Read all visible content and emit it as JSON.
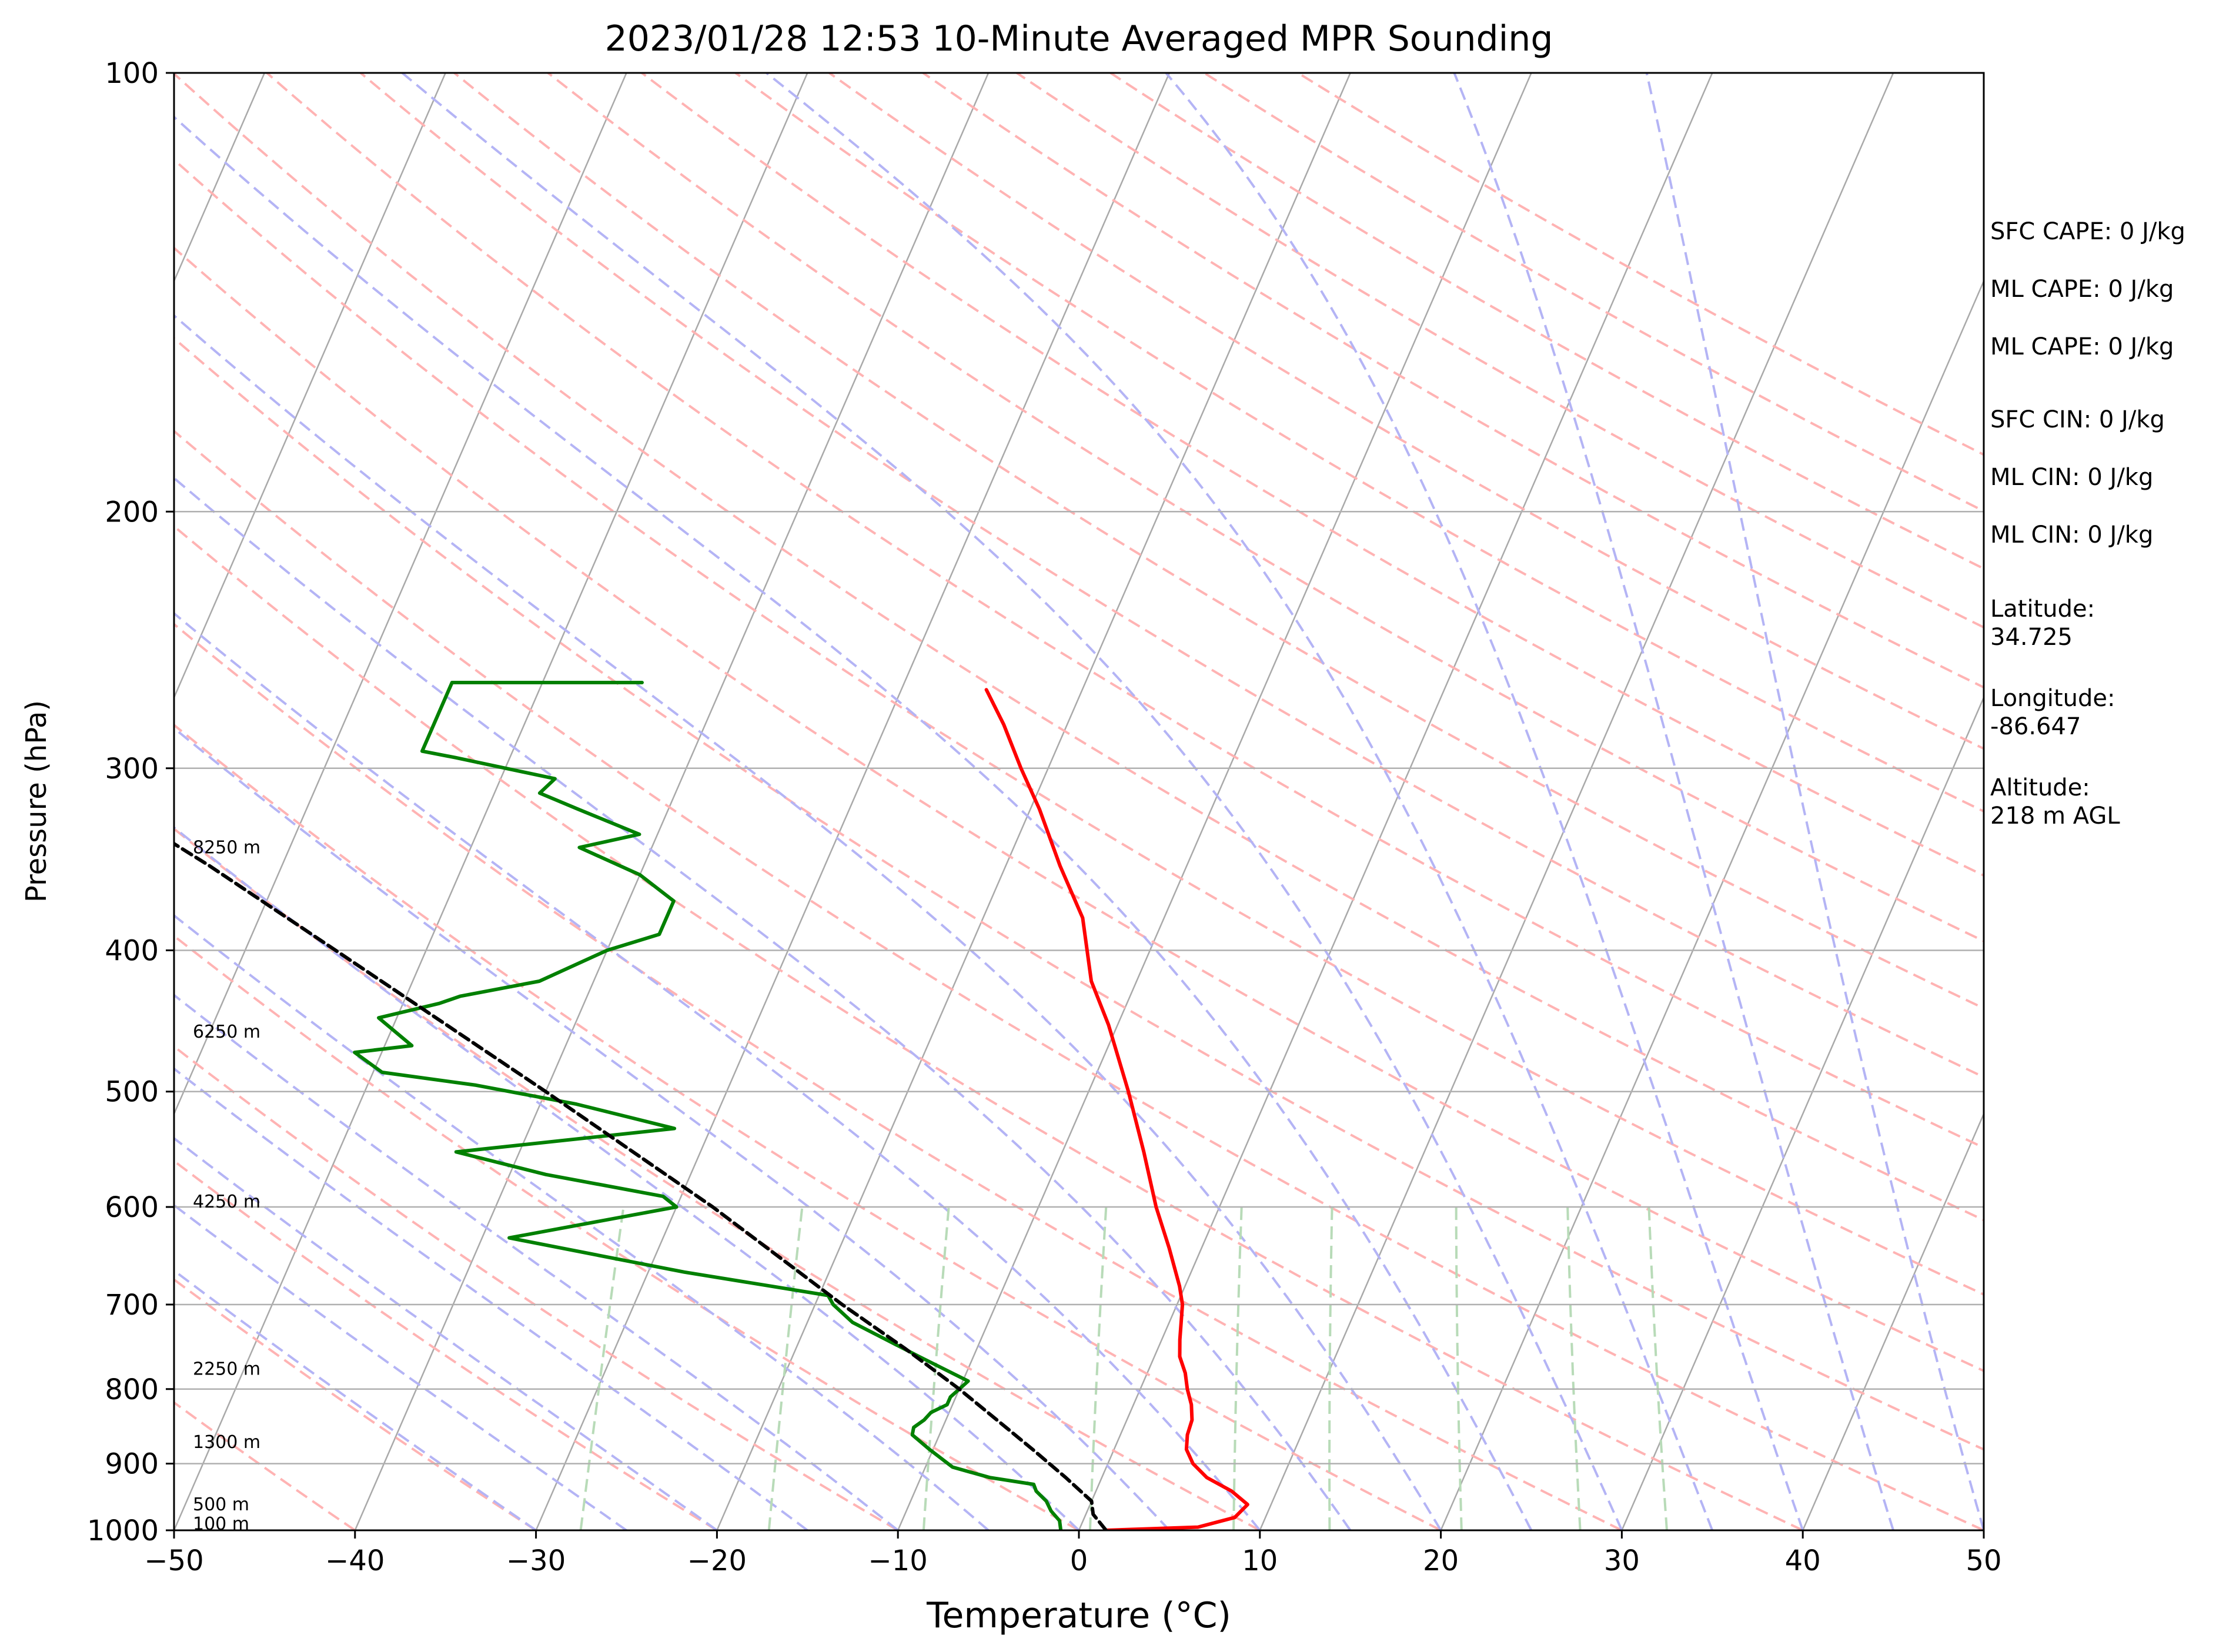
{
  "chart_data": {
    "type": "line",
    "title": "2023/01/28 12:53 10-Minute Averaged MPR Sounding",
    "xlabel": "Temperature (°C)",
    "ylabel": "Pressure (hPa)",
    "xlim": [
      -50,
      50
    ],
    "ylim": [
      1000,
      100
    ],
    "y_scale": "log",
    "grid": true,
    "x_ticks": [
      -50,
      -40,
      -30,
      -20,
      -10,
      0,
      10,
      20,
      30,
      40,
      50
    ],
    "x_tick_labels": [
      "−50",
      "−40",
      "−30",
      "−20",
      "−10",
      "0",
      "10",
      "20",
      "30",
      "40",
      "50"
    ],
    "y_ticks": [
      1000,
      900,
      800,
      700,
      600,
      500,
      400,
      300,
      200,
      100
    ],
    "y_tick_labels": [
      "1000",
      "900",
      "800",
      "700",
      "600",
      "500",
      "400",
      "300",
      "200",
      "100"
    ],
    "skew_note": "skew-T log-p diagram; x values are temperatures in °C",
    "series": [
      {
        "role": "temperature",
        "color": "#ff0000",
        "points": [
          [
            1000,
            1.5
          ],
          [
            995,
            6.5
          ],
          [
            980,
            8.3
          ],
          [
            960,
            8.7
          ],
          [
            940,
            7.5
          ],
          [
            920,
            5.8
          ],
          [
            900,
            4.7
          ],
          [
            880,
            4.0
          ],
          [
            860,
            3.7
          ],
          [
            840,
            3.6
          ],
          [
            820,
            3.2
          ],
          [
            800,
            2.6
          ],
          [
            780,
            2.1
          ],
          [
            760,
            1.4
          ],
          [
            740,
            1.0
          ],
          [
            700,
            0.3
          ],
          [
            680,
            -0.3
          ],
          [
            640,
            -1.8
          ],
          [
            600,
            -3.5
          ],
          [
            550,
            -5.5
          ],
          [
            500,
            -7.8
          ],
          [
            450,
            -10.5
          ],
          [
            420,
            -12.5
          ],
          [
            380,
            -14.5
          ],
          [
            350,
            -17.0
          ],
          [
            320,
            -19.5
          ],
          [
            300,
            -21.5
          ],
          [
            280,
            -23.5
          ],
          [
            265,
            -25.3
          ]
        ]
      },
      {
        "role": "dewpoint",
        "color": "#008000",
        "points": [
          [
            1000,
            -1.0
          ],
          [
            985,
            -1.3
          ],
          [
            970,
            -2.0
          ],
          [
            955,
            -2.5
          ],
          [
            940,
            -3.3
          ],
          [
            930,
            -3.6
          ],
          [
            920,
            -6.2
          ],
          [
            905,
            -8.5
          ],
          [
            880,
            -10.2
          ],
          [
            860,
            -11.5
          ],
          [
            850,
            -11.6
          ],
          [
            840,
            -11.2
          ],
          [
            830,
            -11.0
          ],
          [
            820,
            -10.3
          ],
          [
            810,
            -10.3
          ],
          [
            790,
            -9.7
          ],
          [
            760,
            -13.0
          ],
          [
            720,
            -17.5
          ],
          [
            700,
            -19.0
          ],
          [
            690,
            -19.5
          ],
          [
            665,
            -28.0
          ],
          [
            630,
            -38.5
          ],
          [
            600,
            -30.0
          ],
          [
            590,
            -31.0
          ],
          [
            570,
            -38.0
          ],
          [
            550,
            -43.5
          ],
          [
            530,
            -32.0
          ],
          [
            510,
            -38.0
          ],
          [
            495,
            -44.0
          ],
          [
            485,
            -49.5
          ],
          [
            470,
            -51.5
          ],
          [
            465,
            -48.5
          ],
          [
            445,
            -51.0
          ],
          [
            435,
            -48.0
          ],
          [
            430,
            -47.0
          ],
          [
            420,
            -43.0
          ],
          [
            400,
            -40.0
          ],
          [
            390,
            -37.5
          ],
          [
            370,
            -37.5
          ],
          [
            355,
            -40.0
          ],
          [
            340,
            -44.0
          ],
          [
            333,
            -41.0
          ],
          [
            320,
            -45.0
          ],
          [
            312,
            -47.5
          ],
          [
            305,
            -47.0
          ],
          [
            295,
            -53.0
          ],
          [
            292,
            -55.0
          ],
          [
            262,
            -55.0
          ],
          [
            262,
            -44.5
          ]
        ]
      },
      {
        "role": "parcel",
        "color": "#000000",
        "line_style": "dashed",
        "points": [
          [
            1000,
            1.5
          ],
          [
            975,
            0.4
          ],
          [
            955,
            0.0
          ],
          [
            920,
            -2.0
          ],
          [
            880,
            -4.5
          ],
          [
            850,
            -6.5
          ],
          [
            800,
            -10.0
          ],
          [
            750,
            -14.0
          ],
          [
            700,
            -18.5
          ],
          [
            600,
            -28.0
          ],
          [
            500,
            -40.0
          ],
          [
            400,
            -55.0
          ],
          [
            350,
            -64.0
          ],
          [
            300,
            -75.0
          ],
          [
            285,
            -79.0
          ]
        ]
      }
    ],
    "height_annotations": [
      {
        "label": "100 m",
        "pressure": 990
      },
      {
        "label": "500 m",
        "pressure": 960
      },
      {
        "label": "1300 m",
        "pressure": 870
      },
      {
        "label": "2250 m",
        "pressure": 775
      },
      {
        "label": "4250 m",
        "pressure": 595
      },
      {
        "label": "6250 m",
        "pressure": 455
      },
      {
        "label": "8250 m",
        "pressure": 340
      }
    ],
    "reference_lines": {
      "isotherms_c": [
        -150,
        -140,
        -130,
        -120,
        -110,
        -100,
        -90,
        -80,
        -70,
        -60,
        -50,
        -40,
        -30,
        -20,
        -10,
        0,
        10,
        20,
        30,
        40,
        50
      ],
      "dry_adiabats_c": [
        -50,
        -40,
        -30,
        -20,
        -10,
        0,
        10,
        20,
        30,
        40,
        50,
        60,
        70,
        80,
        90,
        100,
        110,
        120,
        130,
        140,
        150,
        160,
        170,
        180,
        190,
        200,
        210
      ],
      "moist_adiabats_c": [
        -30,
        -25,
        -20,
        -15,
        -10,
        -5,
        0,
        5,
        10,
        15,
        20,
        25,
        30,
        35,
        40,
        45,
        50
      ],
      "mixing_ratios_gkg": [
        0.4,
        1,
        2,
        4,
        7,
        10,
        16,
        24,
        32
      ],
      "colors": {
        "isotherm": "#a9a9a9",
        "dry_adiabat": "#ffb3b3",
        "moist_adiabat": "#b4b4f5",
        "mixing_ratio": "#b8dbb8",
        "gridline": "#b0b0b0"
      }
    }
  },
  "info": [
    "SFC CAPE: 0 J/kg",
    "ML CAPE: 0 J/kg",
    "ML CAPE: 0 J/kg",
    "SFC CIN: 0 J/kg",
    "ML CIN: 0 J/kg",
    "ML CIN: 0 J/kg",
    "Latitude:",
    "34.725",
    "Longitude:",
    "-86.647",
    "Altitude:",
    "218 m AGL"
  ]
}
